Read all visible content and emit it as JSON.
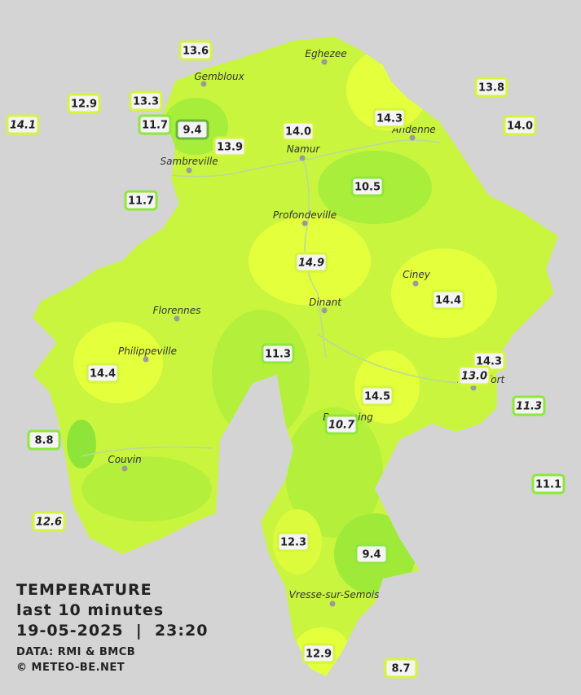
{
  "map": {
    "cities": [
      "Eghezee",
      "Gembloux",
      "Andenne",
      "Namur",
      "Sambreville",
      "Profondeville",
      "Ciney",
      "Florennes",
      "Dinant",
      "Philippeville",
      "Rochefort",
      "Beauraing",
      "Couvin",
      "Vresse-sur-Semois"
    ],
    "stations": [
      "13.6",
      "12.9",
      "13.3",
      "14.1",
      "11.7",
      "9.4",
      "13.9",
      "14.0",
      "14.3",
      "13.8",
      "14.0",
      "11.7",
      "10.5",
      "14.9",
      "14.4",
      "11.3",
      "14.4",
      "14.3",
      "13.0",
      "14.5",
      "10.7",
      "11.3",
      "8.8",
      "11.1",
      "12.6",
      "12.3",
      "9.4",
      "12.9",
      "8.7"
    ],
    "legend": {
      "title": "TEMPERATURE",
      "period": "last 10 minutes",
      "datetime": "19-05-2025  |  23:20",
      "source": "DATA: RMI & BMCB",
      "credit": "© METEO-BE.NET"
    }
  }
}
